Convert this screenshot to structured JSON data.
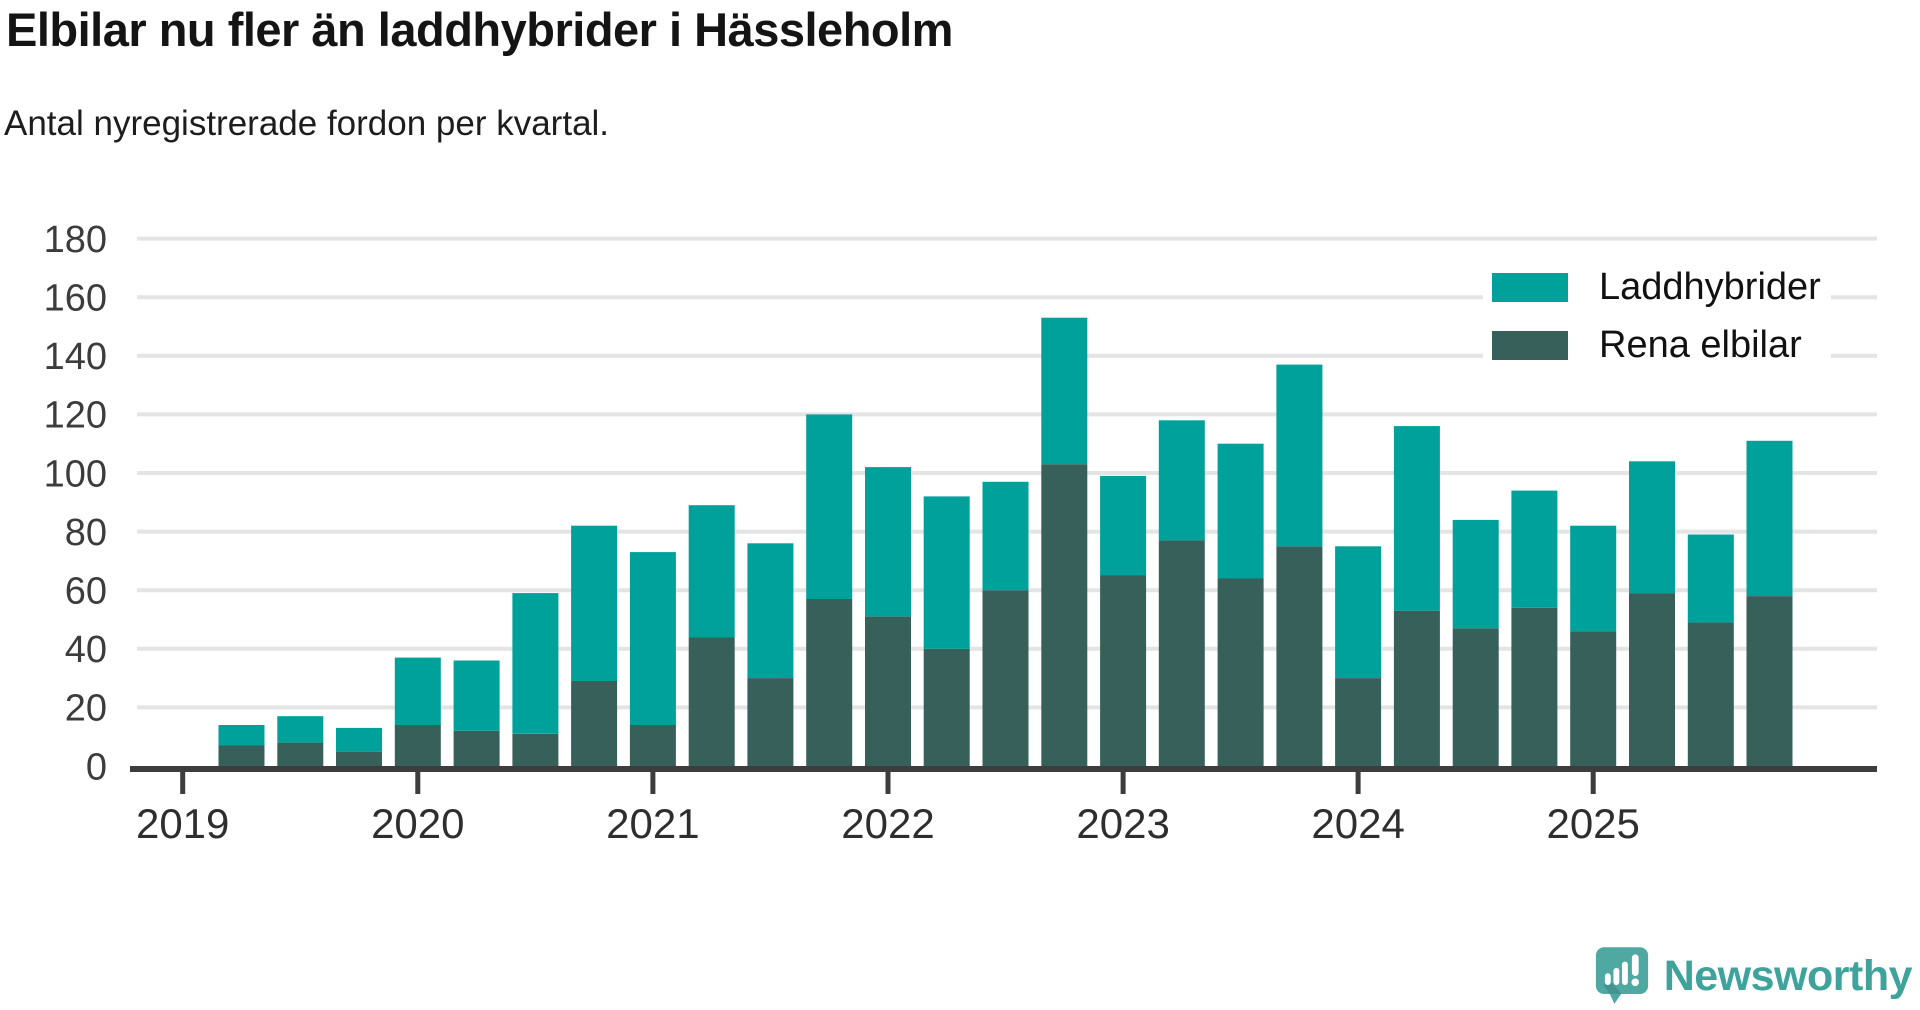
{
  "header": {
    "title": "Elbilar nu fler än laddhybrider i Hässleholm",
    "subtitle": "Antal nyregistrerade fordon per kvartal."
  },
  "footer": {
    "brand": "Newsworthy",
    "brand_color": "#3fa39b",
    "logo_mark_color": "#4fa8a2"
  },
  "chart_data": {
    "type": "bar",
    "stacked": true,
    "title": "Elbilar nu fler än laddhybrider i Hässleholm",
    "subtitle": "Antal nyregistrerade fordon per kvartal.",
    "xlabel": "",
    "ylabel": "",
    "categories": [
      "2019 Q2",
      "2019 Q3",
      "2019 Q4",
      "2020 Q1",
      "2020 Q2",
      "2020 Q3",
      "2020 Q4",
      "2021 Q1",
      "2021 Q2",
      "2021 Q3",
      "2021 Q4",
      "2022 Q1",
      "2022 Q2",
      "2022 Q3",
      "2022 Q4",
      "2023 Q1",
      "2023 Q2",
      "2023 Q3",
      "2023 Q4",
      "2024 Q1",
      "2024 Q2",
      "2024 Q3",
      "2024 Q4",
      "2025 Q1",
      "2025 Q2",
      "2025 Q3",
      "2025 Q4"
    ],
    "series": [
      {
        "name": "Laddhybrider",
        "color": "#00a19a",
        "values": [
          7,
          9,
          8,
          23,
          24,
          48,
          53,
          59,
          45,
          46,
          63,
          51,
          52,
          37,
          50,
          34,
          41,
          46,
          62,
          45,
          63,
          37,
          40,
          36,
          45,
          30,
          53
        ]
      },
      {
        "name": "Rena elbilar",
        "color": "#37605a",
        "values": [
          7,
          8,
          5,
          14,
          12,
          11,
          29,
          14,
          44,
          30,
          57,
          51,
          40,
          60,
          103,
          65,
          77,
          64,
          75,
          30,
          53,
          47,
          54,
          46,
          59,
          49,
          58
        ]
      }
    ],
    "stack_order_bottom_to_top": [
      1,
      0
    ],
    "totals": [
      14,
      17,
      13,
      37,
      36,
      59,
      82,
      73,
      89,
      76,
      120,
      102,
      92,
      97,
      153,
      99,
      118,
      110,
      137,
      75,
      116,
      84,
      94,
      82,
      104,
      79,
      111
    ],
    "ylim": [
      0,
      180
    ],
    "yticks": [
      0,
      20,
      40,
      60,
      80,
      100,
      120,
      140,
      160,
      180
    ],
    "year_ticks": [
      {
        "label": "2019",
        "quarter_index": -1
      },
      {
        "label": "2020",
        "quarter_index": 3
      },
      {
        "label": "2021",
        "quarter_index": 7
      },
      {
        "label": "2022",
        "quarter_index": 11
      },
      {
        "label": "2023",
        "quarter_index": 15
      },
      {
        "label": "2024",
        "quarter_index": 19
      },
      {
        "label": "2025",
        "quarter_index": 23
      }
    ],
    "grid": true,
    "legend_position": "top-right"
  }
}
